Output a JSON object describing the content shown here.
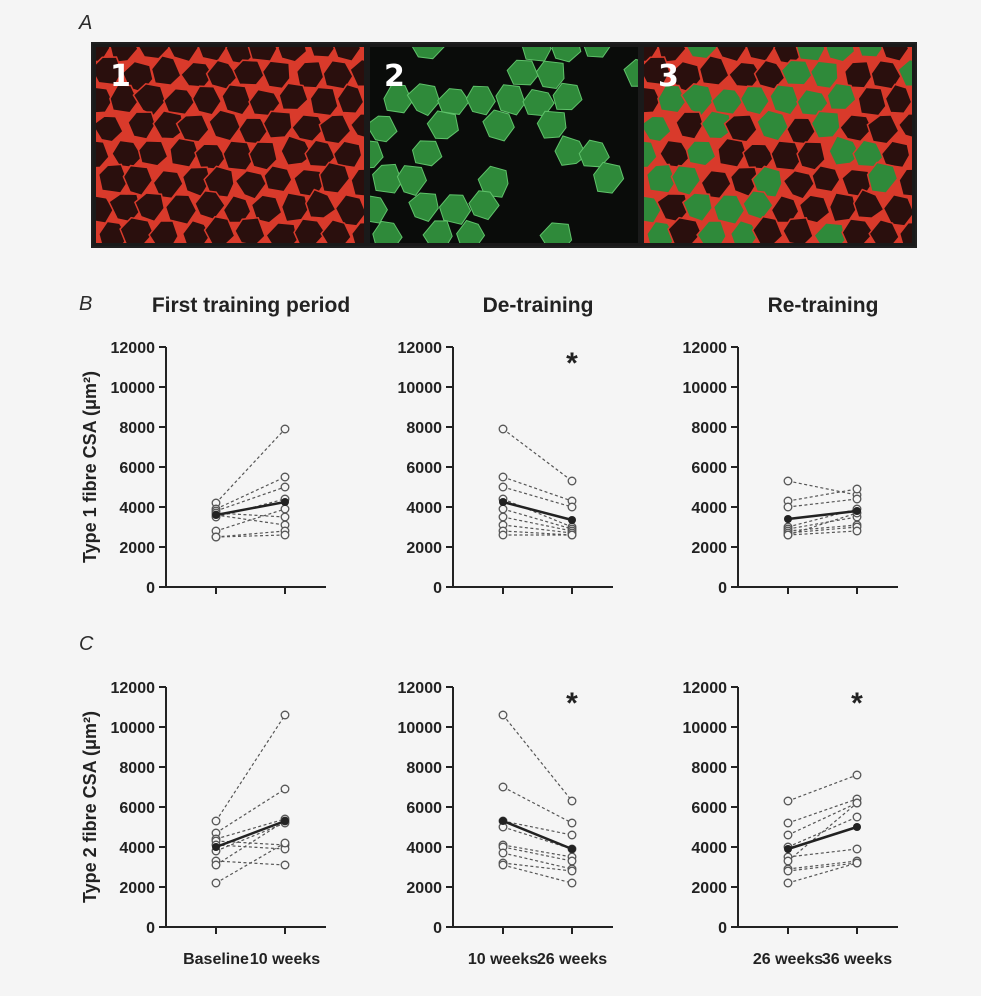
{
  "panel_letters": {
    "a": "A",
    "b": "B",
    "c": "C"
  },
  "micrograph": {
    "labels": [
      "1",
      "2",
      "3"
    ],
    "colors": {
      "membrane": "#d93a2b",
      "fibre_dark": "#2a0f0d",
      "green": "#2f8a3a",
      "green_bright": "#5fc26a",
      "black": "#0a0c0a"
    }
  },
  "colors": {
    "individual": "#555555",
    "mean": "#222222",
    "axis": "#222222",
    "text": "#222222"
  },
  "column_titles": [
    "First training period",
    "De-training",
    "Re-training"
  ],
  "chart_data": [
    {
      "type": "line",
      "row": "B",
      "title": "First training period",
      "ylabel": "Type 1 fibre CSA (μm²)",
      "ylim": [
        0,
        12000
      ],
      "yticks": [
        0,
        2000,
        4000,
        6000,
        8000,
        10000,
        12000
      ],
      "categories": [
        "",
        ""
      ],
      "significant": false,
      "individuals": [
        [
          4200,
          7900
        ],
        [
          3900,
          5500
        ],
        [
          3800,
          5000
        ],
        [
          3700,
          3500
        ],
        [
          3600,
          3100
        ],
        [
          3500,
          4400
        ],
        [
          2800,
          3900
        ],
        [
          2500,
          2800
        ],
        [
          2500,
          2600
        ]
      ],
      "mean": [
        3600,
        4250
      ]
    },
    {
      "type": "line",
      "row": "B",
      "title": "De-training",
      "ylabel": "",
      "ylim": [
        0,
        12000
      ],
      "yticks": [
        0,
        2000,
        4000,
        6000,
        8000,
        10000,
        12000
      ],
      "categories": [
        "",
        ""
      ],
      "significant": true,
      "sig_marker": "*",
      "individuals": [
        [
          7900,
          5300
        ],
        [
          5500,
          4300
        ],
        [
          5000,
          4000
        ],
        [
          4400,
          3000
        ],
        [
          3900,
          2900
        ],
        [
          3500,
          2800
        ],
        [
          3100,
          2700
        ],
        [
          2800,
          2600
        ],
        [
          2600,
          2600
        ]
      ],
      "mean": [
        4250,
        3350
      ]
    },
    {
      "type": "line",
      "row": "B",
      "title": "Re-training",
      "ylabel": "",
      "ylim": [
        0,
        12000
      ],
      "yticks": [
        0,
        2000,
        4000,
        6000,
        8000,
        10000,
        12000
      ],
      "categories": [
        "",
        ""
      ],
      "significant": false,
      "individuals": [
        [
          5300,
          4600
        ],
        [
          4300,
          4900
        ],
        [
          4000,
          4400
        ],
        [
          3000,
          3900
        ],
        [
          2900,
          3500
        ],
        [
          2800,
          3100
        ],
        [
          2700,
          3000
        ],
        [
          2600,
          2800
        ],
        [
          2600,
          3700
        ]
      ],
      "mean": [
        3400,
        3800
      ]
    },
    {
      "type": "line",
      "row": "C",
      "title": "",
      "ylabel": "Type 2 fibre CSA (μm²)",
      "ylim": [
        0,
        12000
      ],
      "yticks": [
        0,
        2000,
        4000,
        6000,
        8000,
        10000,
        12000
      ],
      "categories": [
        "Baseline",
        "10 weeks"
      ],
      "significant": false,
      "individuals": [
        [
          5300,
          10600
        ],
        [
          4700,
          6900
        ],
        [
          4400,
          5400
        ],
        [
          4300,
          4100
        ],
        [
          4100,
          3900
        ],
        [
          3800,
          5200
        ],
        [
          3300,
          3100
        ],
        [
          3100,
          5300
        ],
        [
          2200,
          4200
        ]
      ],
      "mean": [
        4000,
        5300
      ]
    },
    {
      "type": "line",
      "row": "C",
      "title": "",
      "ylabel": "",
      "ylim": [
        0,
        12000
      ],
      "yticks": [
        0,
        2000,
        4000,
        6000,
        8000,
        10000,
        12000
      ],
      "categories": [
        "10 weeks",
        "26 weeks"
      ],
      "significant": true,
      "sig_marker": "*",
      "individuals": [
        [
          10600,
          6300
        ],
        [
          7000,
          5200
        ],
        [
          5300,
          4600
        ],
        [
          5000,
          3900
        ],
        [
          4100,
          3500
        ],
        [
          4000,
          3300
        ],
        [
          3700,
          2900
        ],
        [
          3200,
          2800
        ],
        [
          3100,
          2200
        ]
      ],
      "mean": [
        5300,
        3900
      ]
    },
    {
      "type": "line",
      "row": "C",
      "title": "",
      "ylabel": "",
      "ylim": [
        0,
        12000
      ],
      "yticks": [
        0,
        2000,
        4000,
        6000,
        8000,
        10000,
        12000
      ],
      "categories": [
        "26 weeks",
        "36 weeks"
      ],
      "significant": true,
      "sig_marker": "*",
      "individuals": [
        [
          6300,
          7600
        ],
        [
          5200,
          6400
        ],
        [
          4600,
          6200
        ],
        [
          4000,
          5500
        ],
        [
          3500,
          3900
        ],
        [
          3300,
          6200
        ],
        [
          2900,
          3300
        ],
        [
          2800,
          3200
        ],
        [
          2200,
          3200
        ]
      ],
      "mean": [
        3900,
        5000
      ]
    }
  ]
}
